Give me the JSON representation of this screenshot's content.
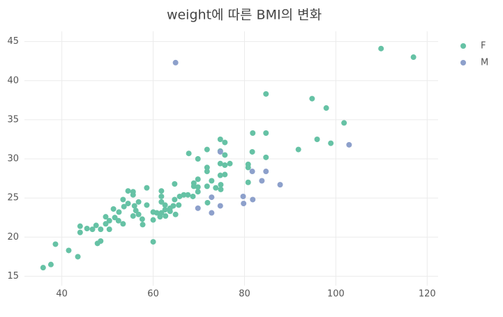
{
  "chart_data": {
    "type": "scatter",
    "title": "weight에 따른 BMI의 변화",
    "xlim": [
      31.8,
      122.4
    ],
    "xticks": [
      40,
      60,
      80,
      100,
      120
    ],
    "ylim": [
      13.8,
      46.3
    ],
    "yticks": [
      15,
      20,
      25,
      30,
      35,
      40,
      45
    ],
    "grid": true,
    "legend": "right",
    "series": [
      {
        "name": "F",
        "color": "#66c2a5",
        "x": [
          35.9,
          37.6,
          38.6,
          41.5,
          43.5,
          44,
          44,
          45.5,
          46.7,
          47.5,
          48.5,
          47.8,
          48.5,
          49.6,
          49.6,
          50.4,
          50.4,
          51.3,
          51.6,
          52.5,
          52.4,
          53.4,
          53.6,
          53.4,
          54.5,
          54.5,
          55.6,
          55.6,
          55.6,
          55.9,
          56.2,
          56.8,
          56.8,
          57.6,
          57.7,
          58.6,
          58.6,
          60,
          60,
          60,
          60.8,
          61.5,
          61.8,
          61.8,
          61.8,
          61.8,
          62.6,
          62.6,
          62.7,
          63.7,
          63.7,
          64.4,
          64.7,
          64.7,
          64.9,
          65.6,
          65.8,
          66.7,
          67.6,
          67.8,
          68.7,
          68.9,
          68.9,
          69.8,
          69.8,
          69.8,
          69.8,
          71.8,
          71.8,
          71.8,
          71.8,
          71.9,
          72.8,
          73.7,
          74.7,
          74.7,
          74.7,
          74.7,
          74.8,
          74.8,
          75.7,
          75.7,
          75.7,
          75.7,
          76.8,
          80.8,
          80.8,
          80.8,
          81.7,
          81.8,
          84.7,
          84.7,
          84.7,
          91.8,
          94.8,
          95.9,
          97.9,
          98.9,
          101.8,
          109.9,
          117
        ],
        "values": [
          16.1,
          16.5,
          19.1,
          18.3,
          17.5,
          21.4,
          20.6,
          21.1,
          21.0,
          21.5,
          21.0,
          19.2,
          19.5,
          21.7,
          22.6,
          22.1,
          21.0,
          23.6,
          22.5,
          23.2,
          22.1,
          21.7,
          23.9,
          24.8,
          24.3,
          25.9,
          25.8,
          25.4,
          22.7,
          24.0,
          23.4,
          24.5,
          22.9,
          22.3,
          21.6,
          26.3,
          24.1,
          19.4,
          22.2,
          23.2,
          23.1,
          22.6,
          25.9,
          25.2,
          24.5,
          23.1,
          24.1,
          23.5,
          22.7,
          23.7,
          23.3,
          24.0,
          26.8,
          24.8,
          22.9,
          24.1,
          25.2,
          25.4,
          25.4,
          30.7,
          25.2,
          26.9,
          26.5,
          30.0,
          27.4,
          26.4,
          25.8,
          31.2,
          28.9,
          28.4,
          26.5,
          24.4,
          27.2,
          26.3,
          32.5,
          31.0,
          29.4,
          27.9,
          26.7,
          26.1,
          32.1,
          30.5,
          29.2,
          28.0,
          29.4,
          29.3,
          28.9,
          27.0,
          30.9,
          33.3,
          38.3,
          33.3,
          30.2,
          31.2,
          37.7,
          32.5,
          36.5,
          32.0,
          34.6,
          44.1,
          43.0
        ]
      },
      {
        "name": "M",
        "color": "#8da0cb",
        "x": [
          64.9,
          69.8,
          72.8,
          72.8,
          74.7,
          74.7,
          79.7,
          79.8,
          81.7,
          81.8,
          83.8,
          84.7,
          87.8,
          102.9
        ],
        "values": [
          42.3,
          23.7,
          25.1,
          23.1,
          24.0,
          30.9,
          25.2,
          24.3,
          28.4,
          24.8,
          27.2,
          28.4,
          26.7,
          31.8
        ]
      }
    ]
  }
}
